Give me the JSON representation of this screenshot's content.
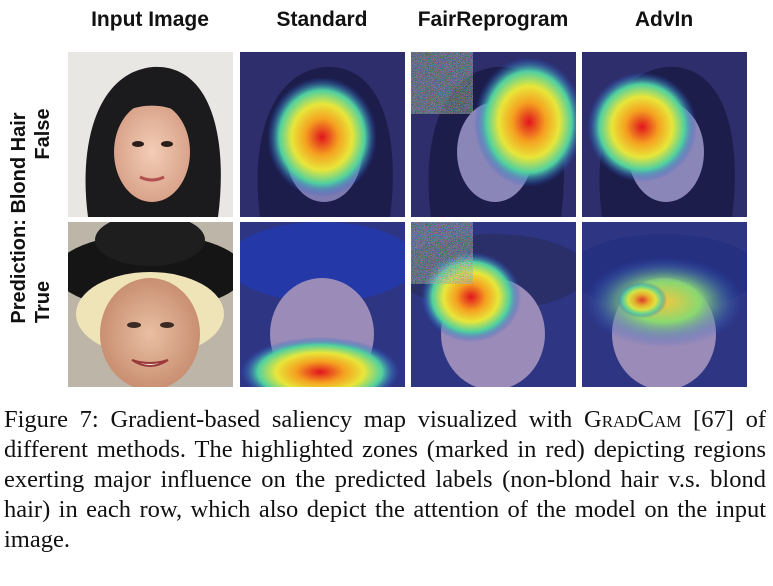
{
  "columns": [
    "Input Image",
    "Standard",
    "FairReprogram",
    "AdvIn"
  ],
  "row_labels": {
    "prefix": "Prediction: Blond Hair",
    "rows": [
      "False",
      "True"
    ]
  },
  "caption": {
    "label": "Figure 7:",
    "text_before": "Gradient-based saliency map visualized with ",
    "method_name": "GradCam",
    "text_after": " [67] of different methods. The highlighted zones (marked in red) depicting regions exerting major influence on the predicted labels (non-blond hair v.s. blond hair) in each row, which also depict the attention of the model on the input image."
  }
}
